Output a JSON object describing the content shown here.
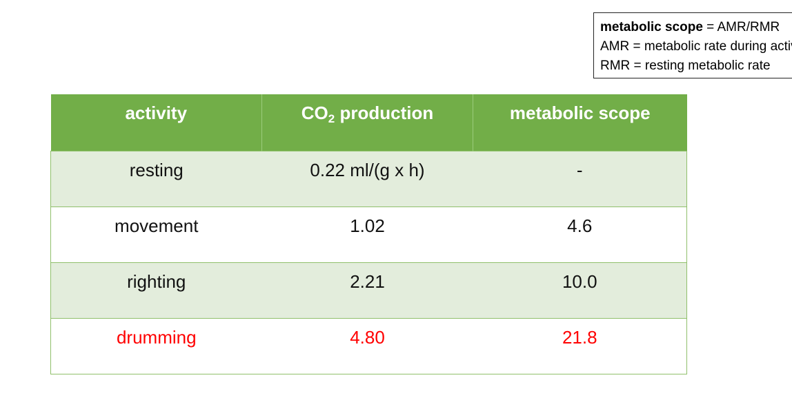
{
  "legend": {
    "line1_term": "metabolic scope",
    "line1_rest": " = AMR/RMR",
    "line2": "AMR = metabolic rate during activity",
    "line3": "RMR = resting metabolic rate"
  },
  "table": {
    "headers": {
      "activity": "activity",
      "co2_main": "CO",
      "co2_sub": "2",
      "co2_rest": " production",
      "scope": "metabolic scope"
    },
    "rows": [
      {
        "activity": "resting",
        "co2": "0.22 ml/(g x h)",
        "scope": "-"
      },
      {
        "activity": "movement",
        "co2": "1.02",
        "scope": "4.6"
      },
      {
        "activity": "righting",
        "co2": "2.21",
        "scope": "10.0"
      },
      {
        "activity": "drumming",
        "co2": "4.80",
        "scope": "21.8"
      }
    ],
    "highlight_color": "#ff0000",
    "header_color": "#72ae48"
  }
}
